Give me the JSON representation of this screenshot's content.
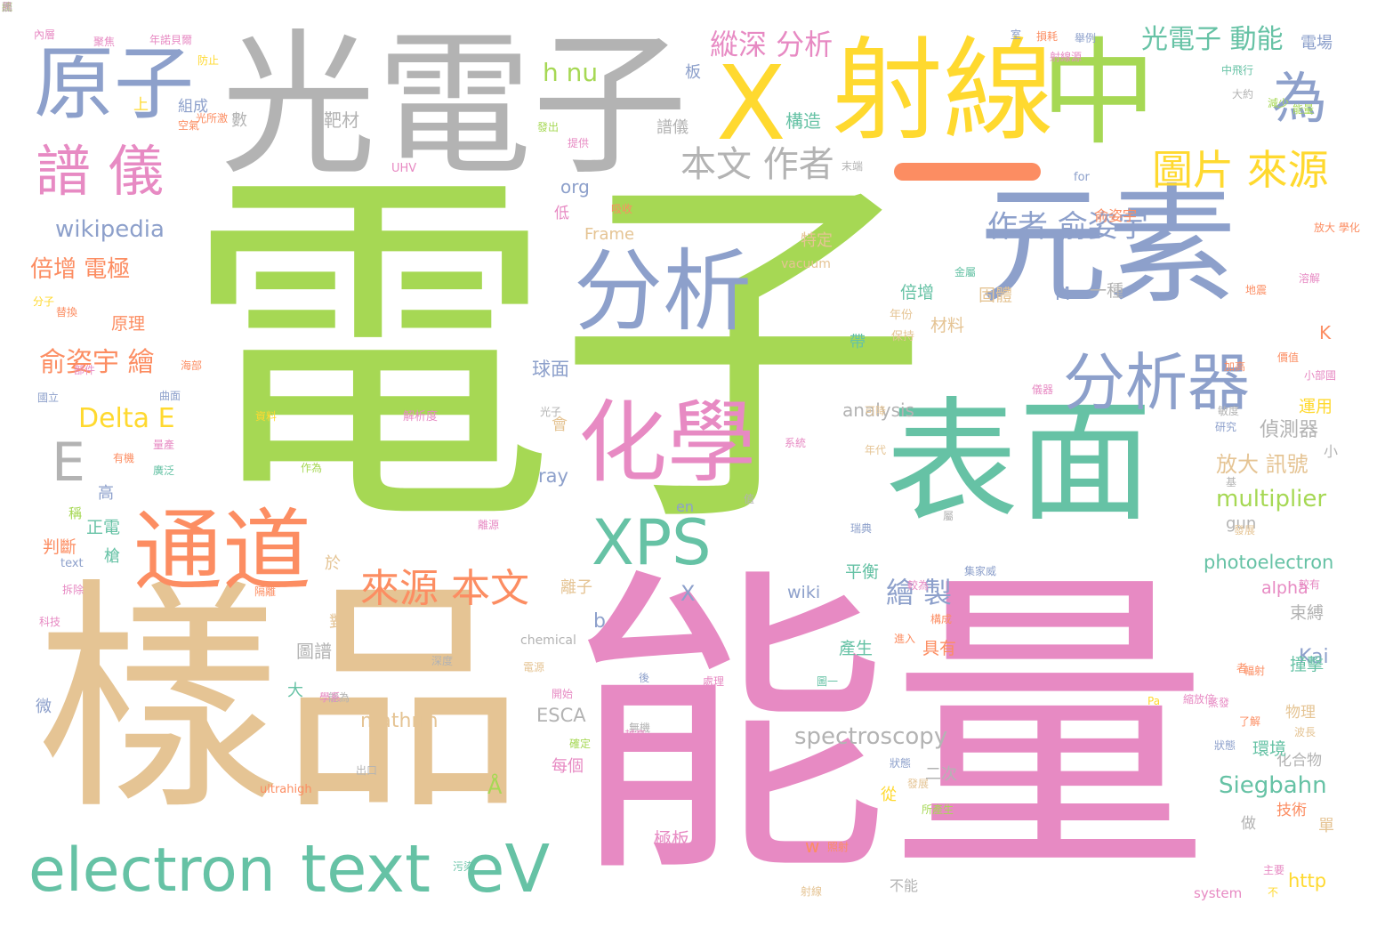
{
  "palette": {
    "green": "#a6d854",
    "pink": "#e78ac3",
    "tan": "#e5c494",
    "gray": "#b3b3b3",
    "blue": "#8da0cb",
    "teal": "#66c2a5",
    "yellow": "#ffd92f",
    "orange": "#fc8d62"
  },
  "words": [
    {
      "text": "電子",
      "c": "green"
    },
    {
      "text": "能量",
      "c": "pink"
    },
    {
      "text": "樣品",
      "c": "tan"
    },
    {
      "text": "光電子",
      "c": "gray"
    },
    {
      "text": "元素",
      "c": "blue"
    },
    {
      "text": "表面",
      "c": "teal"
    },
    {
      "text": "射線",
      "c": "yellow"
    },
    {
      "text": "中",
      "c": "green"
    },
    {
      "text": "X",
      "c": "yellow"
    },
    {
      "text": "原子",
      "c": "blue"
    },
    {
      "text": "分析",
      "c": "blue"
    },
    {
      "text": "化學",
      "c": "pink"
    },
    {
      "text": "通道",
      "c": "orange"
    },
    {
      "text": "electron",
      "c": "teal"
    },
    {
      "text": "text",
      "c": "teal"
    },
    {
      "text": "eV",
      "c": "teal"
    },
    {
      "text": "XPS",
      "c": "teal"
    },
    {
      "text": "分析器",
      "c": "blue"
    },
    {
      "text": "譜 儀",
      "c": "pink"
    },
    {
      "text": "為",
      "c": "blue"
    },
    {
      "text": "E",
      "c": "gray"
    },
    {
      "text": "圖片 來源",
      "c": "yellow"
    },
    {
      "text": "來源 本文",
      "c": "orange"
    },
    {
      "text": "本文 作者",
      "c": "gray"
    },
    {
      "text": "光電子 動能",
      "c": "teal"
    },
    {
      "text": "作者 俞姿宇",
      "c": "blue"
    },
    {
      "text": "h nu",
      "c": "green"
    },
    {
      "text": "縱深 分析",
      "c": "pink"
    },
    {
      "text": "俞姿宇 繪",
      "c": "orange"
    },
    {
      "text": "Delta E",
      "c": "yellow"
    },
    {
      "text": "wikipedia",
      "c": "blue"
    },
    {
      "text": "倍增 電極",
      "c": "orange"
    },
    {
      "text": "繪 製",
      "c": "blue"
    },
    {
      "text": "multiplier",
      "c": "green"
    },
    {
      "text": "spectroscopy",
      "c": "gray"
    },
    {
      "text": "Siegbahn",
      "c": "teal"
    },
    {
      "text": "photoelectron",
      "c": "teal"
    },
    {
      "text": "放大 訊號",
      "c": "tan"
    },
    {
      "text": "偵測器",
      "c": "gray"
    },
    {
      "text": "analysis",
      "c": "gray"
    },
    {
      "text": "mathrm",
      "c": "tan"
    },
    {
      "text": "Kai",
      "c": "blue"
    },
    {
      "text": "ESCA",
      "c": "gray"
    },
    {
      "text": "Frame",
      "c": "tan"
    },
    {
      "text": "org",
      "c": "blue"
    },
    {
      "text": "ray",
      "c": "blue"
    },
    {
      "text": "wiki",
      "c": "blue"
    },
    {
      "text": "alpha",
      "c": "pink"
    },
    {
      "text": "http",
      "c": "yellow"
    },
    {
      "text": "gun",
      "c": "gray"
    },
    {
      "text": "Å",
      "c": "green"
    },
    {
      "text": "b",
      "c": "blue"
    },
    {
      "text": "K",
      "c": "orange"
    },
    {
      "text": "M",
      "c": "blue"
    },
    {
      "text": "X",
      "c": "blue"
    },
    {
      "text": "en",
      "c": "blue"
    },
    {
      "text": "w",
      "c": "orange"
    },
    {
      "text": "構造",
      "c": "teal"
    },
    {
      "text": "球面",
      "c": "blue"
    },
    {
      "text": "靶材",
      "c": "gray"
    },
    {
      "text": "原理",
      "c": "orange"
    },
    {
      "text": "材料",
      "c": "tan"
    },
    {
      "text": "倍增",
      "c": "teal"
    },
    {
      "text": "固體",
      "c": "tan"
    },
    {
      "text": "一種",
      "c": "gray"
    },
    {
      "text": "特定",
      "c": "tan"
    },
    {
      "text": "運用",
      "c": "yellow"
    },
    {
      "text": "束縛",
      "c": "gray"
    },
    {
      "text": "撞擊",
      "c": "teal"
    },
    {
      "text": "圖譜",
      "c": "gray"
    },
    {
      "text": "具有",
      "c": "orange"
    },
    {
      "text": "產生",
      "c": "teal"
    },
    {
      "text": "平衡",
      "c": "teal"
    },
    {
      "text": "離子",
      "c": "tan"
    },
    {
      "text": "每個",
      "c": "pink"
    },
    {
      "text": "化合物",
      "c": "gray"
    },
    {
      "text": "物理",
      "c": "tan"
    },
    {
      "text": "環境",
      "c": "teal"
    },
    {
      "text": "技術",
      "c": "orange"
    },
    {
      "text": "極板",
      "c": "pink"
    },
    {
      "text": "二次",
      "c": "gray"
    },
    {
      "text": "不能",
      "c": "gray"
    },
    {
      "text": "判斷",
      "c": "orange"
    },
    {
      "text": "正電",
      "c": "teal"
    },
    {
      "text": "俞姿宇",
      "c": "orange"
    },
    {
      "text": "譜儀",
      "c": "gray"
    },
    {
      "text": "會",
      "c": "tan"
    },
    {
      "text": "低",
      "c": "pink"
    },
    {
      "text": "帶",
      "c": "teal"
    },
    {
      "text": "大",
      "c": "teal"
    },
    {
      "text": "於",
      "c": "tan"
    },
    {
      "text": "對",
      "c": "tan"
    },
    {
      "text": "從",
      "c": "yellow"
    },
    {
      "text": "做",
      "c": "gray"
    },
    {
      "text": "單",
      "c": "tan"
    },
    {
      "text": "槍",
      "c": "teal"
    },
    {
      "text": "微",
      "c": "blue"
    },
    {
      "text": "高",
      "c": "blue"
    },
    {
      "text": "上",
      "c": "yellow"
    },
    {
      "text": "數",
      "c": "gray"
    },
    {
      "text": "板",
      "c": "blue"
    },
    {
      "text": "小",
      "c": "gray"
    },
    {
      "text": "稱",
      "c": "green"
    },
    {
      "text": "組成",
      "c": "blue"
    },
    {
      "text": "UHV",
      "c": "pink"
    },
    {
      "text": "for",
      "c": "blue"
    },
    {
      "text": "vacuum",
      "c": "tan"
    },
    {
      "text": "chemical",
      "c": "gray"
    },
    {
      "text": "ultrahigh",
      "c": "orange"
    },
    {
      "text": "system",
      "c": "pink"
    },
    {
      "text": "text",
      "c": "blue"
    },
    {
      "text": "電場",
      "c": "blue"
    },
    {
      "text": "光子",
      "c": "gray"
    },
    {
      "text": "深度",
      "c": "gray"
    },
    {
      "text": "出口",
      "c": "gray"
    },
    {
      "text": "作為",
      "c": "green"
    },
    {
      "text": "資料",
      "c": "yellow"
    },
    {
      "text": "解析度",
      "c": "pink"
    },
    {
      "text": "年份",
      "c": "tan"
    },
    {
      "text": "保持",
      "c": "tan"
    },
    {
      "text": "年代",
      "c": "tan"
    },
    {
      "text": "可降",
      "c": "tan"
    },
    {
      "text": "敏度",
      "c": "gray"
    },
    {
      "text": "研究",
      "c": "blue"
    },
    {
      "text": "有機",
      "c": "orange"
    },
    {
      "text": "內層",
      "c": "pink"
    },
    {
      "text": "聚焦",
      "c": "pink"
    },
    {
      "text": "年諾貝爾",
      "c": "pink"
    },
    {
      "text": "防止",
      "c": "yellow"
    },
    {
      "text": "室",
      "c": "blue"
    },
    {
      "text": "損耗",
      "c": "orange"
    },
    {
      "text": "舉例",
      "c": "blue"
    },
    {
      "text": "射線源",
      "c": "pink"
    },
    {
      "text": "中飛行",
      "c": "teal"
    },
    {
      "text": "大約",
      "c": "gray"
    },
    {
      "text": "減少",
      "c": "green"
    },
    {
      "text": "能量",
      "c": "green"
    },
    {
      "text": "提供",
      "c": "pink"
    },
    {
      "text": "發出",
      "c": "green"
    },
    {
      "text": "光所激",
      "c": "orange"
    },
    {
      "text": "空氣",
      "c": "orange"
    },
    {
      "text": "末端",
      "c": "gray"
    },
    {
      "text": "吸收",
      "c": "orange"
    },
    {
      "text": "金屬",
      "c": "teal"
    },
    {
      "text": "放大 學化",
      "c": "orange"
    },
    {
      "text": "溶解",
      "c": "pink"
    },
    {
      "text": "小部國",
      "c": "pink"
    },
    {
      "text": "替換",
      "c": "orange"
    },
    {
      "text": "分子",
      "c": "yellow"
    },
    {
      "text": "地震",
      "c": "orange"
    },
    {
      "text": "加高",
      "c": "orange"
    },
    {
      "text": "價值",
      "c": "orange"
    },
    {
      "text": "國立",
      "c": "blue"
    },
    {
      "text": "曲面",
      "c": "blue"
    },
    {
      "text": "海部",
      "c": "orange"
    },
    {
      "text": "量產",
      "c": "pink"
    },
    {
      "text": "部件",
      "c": "pink"
    },
    {
      "text": "科技",
      "c": "pink"
    },
    {
      "text": "拆除",
      "c": "pink"
    },
    {
      "text": "隔離",
      "c": "orange"
    },
    {
      "text": "廣泛",
      "c": "teal"
    },
    {
      "text": "離源",
      "c": "pink"
    },
    {
      "text": "波長",
      "c": "tan"
    },
    {
      "text": "瑞典",
      "c": "blue"
    },
    {
      "text": "發展",
      "c": "tan"
    },
    {
      "text": "集家威",
      "c": "blue"
    },
    {
      "text": "較有",
      "c": "pink"
    },
    {
      "text": "較為",
      "c": "pink"
    },
    {
      "text": "構成",
      "c": "orange"
    },
    {
      "text": "進入",
      "c": "orange"
    },
    {
      "text": "儀器",
      "c": "pink"
    },
    {
      "text": "電源",
      "c": "tan"
    },
    {
      "text": "開始",
      "c": "pink"
    },
    {
      "text": "處理",
      "c": "pink"
    },
    {
      "text": "圖一",
      "c": "teal"
    },
    {
      "text": "無機",
      "c": "gray"
    },
    {
      "text": "狀態",
      "c": "blue"
    },
    {
      "text": "輻射",
      "c": "orange"
    },
    {
      "text": "發展",
      "c": "tan"
    },
    {
      "text": "所產生",
      "c": "green"
    },
    {
      "text": "照射",
      "c": "orange"
    },
    {
      "text": "射線",
      "c": "tan"
    },
    {
      "text": "污染",
      "c": "teal"
    },
    {
      "text": "主要",
      "c": "pink"
    },
    {
      "text": "不",
      "c": "yellow"
    },
    {
      "text": "後",
      "c": "blue"
    },
    {
      "text": "者",
      "c": "orange"
    },
    {
      "text": "Pa",
      "c": "yellow"
    },
    {
      "text": "縮放倍",
      "c": "pink"
    },
    {
      "text": "蒸發",
      "c": "pink"
    },
    {
      "text": "能為",
      "c": "gray"
    },
    {
      "text": "學系",
      "c": "pink"
    },
    {
      "text": "屬",
      "c": "gray"
    },
    {
      "text": "值",
      "c": "gray"
    },
    {
      "text": "基",
      "c": "gray"
    },
    {
      "text": "確定",
      "c": "green"
    },
    {
      "text": "越高",
      "c": "pink"
    },
    {
      "text": "了解",
      "c": "orange"
    },
    {
      "text": "系統",
      "c": "pink"
    },
    {
      "text": "狀態",
      "c": "blue"
    },
    {
      "text": "統",
      "c": "green"
    },
    {
      "text": "黑",
      "c": "pink"
    },
    {
      "text": "面",
      "c": "gray"
    }
  ]
}
